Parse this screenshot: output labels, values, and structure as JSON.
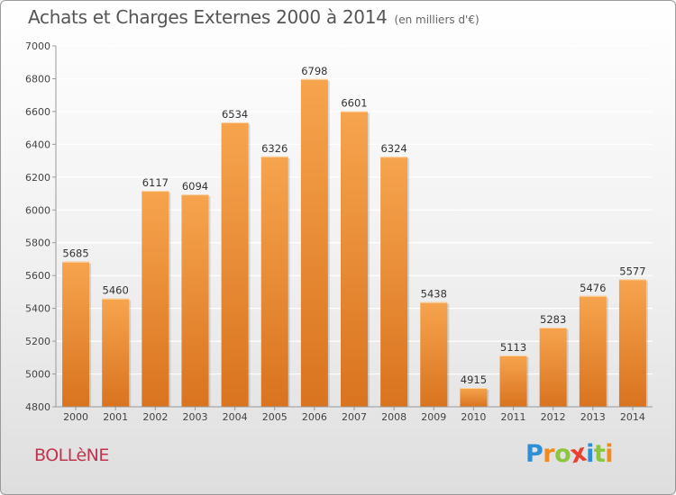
{
  "header": {
    "title": "Achats et Charges Externes 2000 à 2014",
    "subtitle": "(en milliers d'€)"
  },
  "footer": {
    "town": "BOLLèNE",
    "logo_text": "Proxiti"
  },
  "colors": {
    "bar_light": "#f7a44e",
    "bar_dark": "#d9731f",
    "town": "#c2334f",
    "grid": "#ffffff",
    "axis": "#999999"
  },
  "chart_data": {
    "type": "bar",
    "title": "Achats et Charges Externes 2000 à 2014",
    "subtitle": "(en milliers d'€)",
    "categories": [
      "2000",
      "2001",
      "2002",
      "2003",
      "2004",
      "2005",
      "2006",
      "2007",
      "2008",
      "2009",
      "2010",
      "2011",
      "2012",
      "2013",
      "2014"
    ],
    "values": [
      5685,
      5460,
      6117,
      6094,
      6534,
      6326,
      6798,
      6601,
      6324,
      5438,
      4915,
      5113,
      5283,
      5476,
      5577
    ],
    "ylim": [
      4800,
      7000
    ],
    "yticks": [
      4800,
      5000,
      5200,
      5400,
      5600,
      5800,
      6000,
      6200,
      6400,
      6600,
      6800,
      7000
    ],
    "grid": true,
    "data_labels": true
  }
}
